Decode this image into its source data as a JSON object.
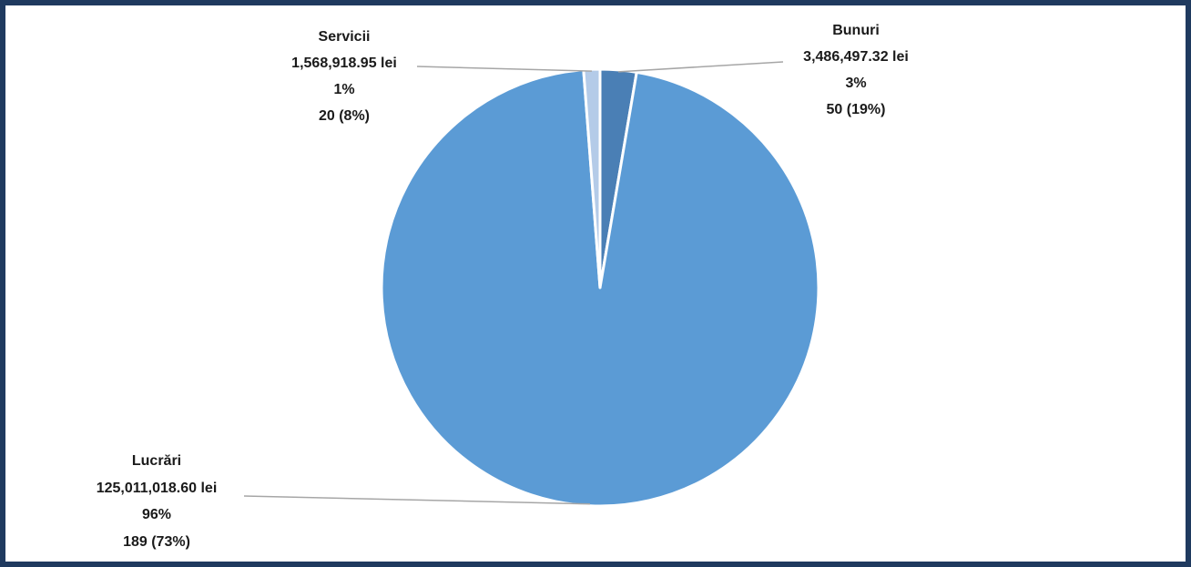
{
  "chart_data": {
    "type": "pie",
    "title": "",
    "categories": [
      "Bunuri",
      "Lucrări",
      "Servicii"
    ],
    "values": [
      3486497.32,
      125011018.6,
      1568918.95
    ],
    "colors": [
      "#4a7fb5",
      "#5b9bd5",
      "#b4cbe8"
    ],
    "start_angle_deg": 0,
    "direction": "clockwise",
    "legend": "none",
    "labels": [
      {
        "name": "Bunuri",
        "amount": "3,486,497.32 lei",
        "percent": "3%",
        "count": "50 (19%)"
      },
      {
        "name": "Lucrări",
        "amount": "125,011,018.60 lei",
        "percent": "96%",
        "count": "189 (73%)"
      },
      {
        "name": "Servicii",
        "amount": "1,568,918.95 lei",
        "percent": "1%",
        "count": "20 (8%)"
      }
    ]
  }
}
